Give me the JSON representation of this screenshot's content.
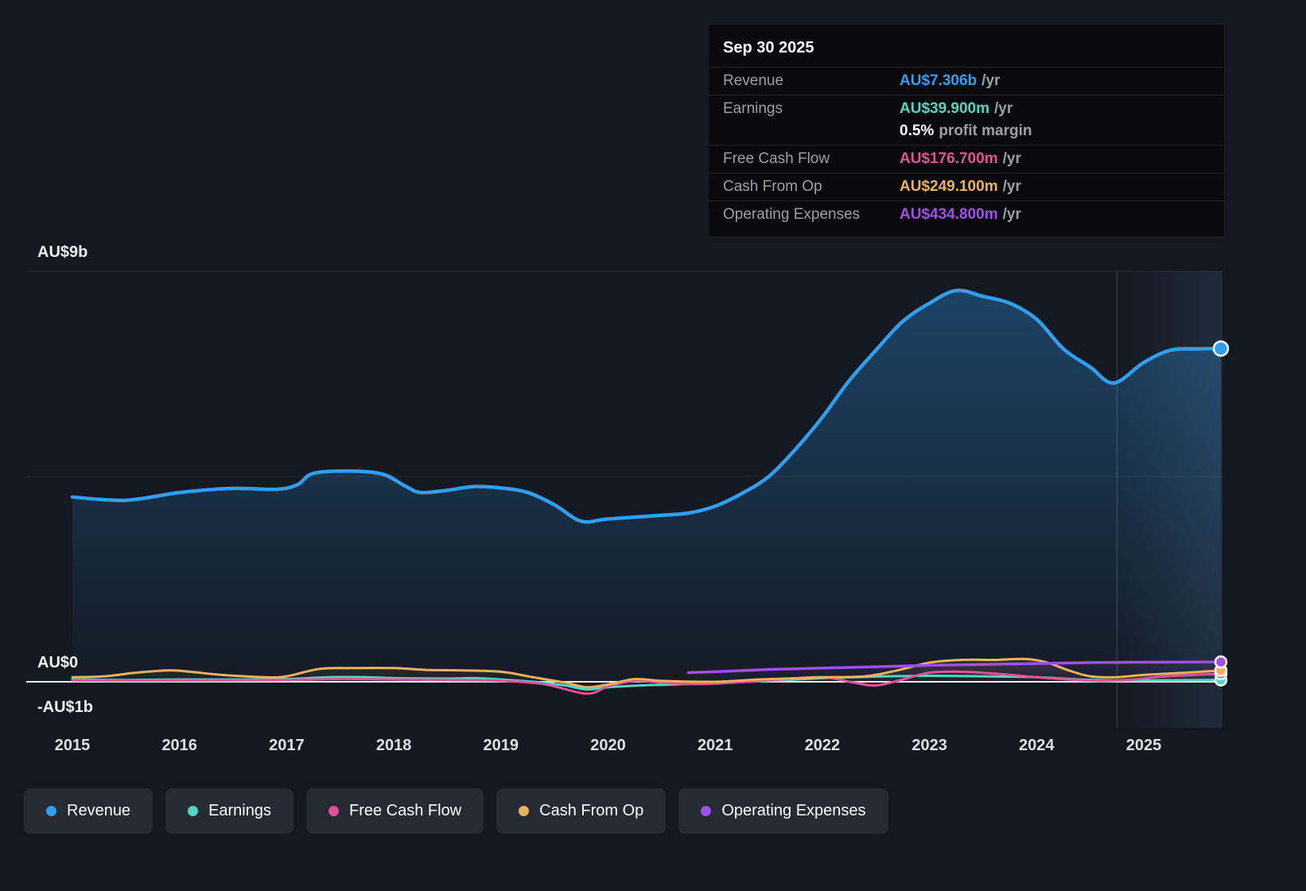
{
  "tooltip": {
    "date": "Sep 30 2025",
    "rows": [
      {
        "label": "Revenue",
        "value": "AU$7.306b",
        "suffix": "/yr",
        "color": "#2f9ff2"
      },
      {
        "label": "Earnings",
        "value": "AU$39.900m",
        "suffix": "/yr",
        "color": "#4ed8c3"
      },
      {
        "label": "Free Cash Flow",
        "value": "AU$176.700m",
        "suffix": "/yr",
        "color": "#e2519a"
      },
      {
        "label": "Cash From Op",
        "value": "AU$249.100m",
        "suffix": "/yr",
        "color": "#e9b35c"
      },
      {
        "label": "Operating Expenses",
        "value": "AU$434.800m",
        "suffix": "/yr",
        "color": "#a04ef0"
      }
    ],
    "profit_margin": {
      "value": "0.5%",
      "label": "profit margin"
    }
  },
  "axis": {
    "y_labels": [
      "AU$9b",
      "AU$0",
      "-AU$1b"
    ],
    "x_labels": [
      "2015",
      "2016",
      "2017",
      "2018",
      "2019",
      "2020",
      "2021",
      "2022",
      "2023",
      "2024",
      "2025"
    ]
  },
  "legend": {
    "items": [
      {
        "label": "Revenue",
        "color": "#2f9ff2"
      },
      {
        "label": "Earnings",
        "color": "#4ed8c3"
      },
      {
        "label": "Free Cash Flow",
        "color": "#e2519a"
      },
      {
        "label": "Cash From Op",
        "color": "#e9b35c"
      },
      {
        "label": "Operating Expenses",
        "color": "#a04ef0"
      }
    ]
  },
  "chart_data": {
    "type": "area",
    "title": "",
    "unit": "AU$ billions",
    "x_ticks": [
      2015,
      2016,
      2017,
      2018,
      2019,
      2020,
      2021,
      2022,
      2023,
      2024,
      2025
    ],
    "x_range": [
      2015,
      2025.73
    ],
    "ylim": [
      -1,
      9
    ],
    "y_gridlines_b": [
      9,
      4.5
    ],
    "zero_line": true,
    "highlight_from_year": 2024.75,
    "legend_position": "bottom",
    "series": [
      {
        "name": "Revenue",
        "color": "#2f9ff2",
        "line_width": 4.5,
        "area_opacity": 0.32,
        "end_marker": 9,
        "points": [
          [
            2015,
            4.05
          ],
          [
            2015.5,
            3.98
          ],
          [
            2016,
            4.15
          ],
          [
            2016.5,
            4.24
          ],
          [
            2016.9,
            4.22
          ],
          [
            2017.1,
            4.32
          ],
          [
            2017.25,
            4.57
          ],
          [
            2017.6,
            4.62
          ],
          [
            2017.9,
            4.55
          ],
          [
            2018.1,
            4.3
          ],
          [
            2018.25,
            4.15
          ],
          [
            2018.5,
            4.2
          ],
          [
            2018.75,
            4.28
          ],
          [
            2019,
            4.25
          ],
          [
            2019.25,
            4.15
          ],
          [
            2019.5,
            3.88
          ],
          [
            2019.75,
            3.52
          ],
          [
            2020,
            3.57
          ],
          [
            2020.5,
            3.65
          ],
          [
            2020.75,
            3.7
          ],
          [
            2021,
            3.85
          ],
          [
            2021.25,
            4.13
          ],
          [
            2021.5,
            4.5
          ],
          [
            2021.75,
            5.1
          ],
          [
            2022,
            5.8
          ],
          [
            2022.25,
            6.6
          ],
          [
            2022.5,
            7.27
          ],
          [
            2022.75,
            7.9
          ],
          [
            2023,
            8.3
          ],
          [
            2023.25,
            8.58
          ],
          [
            2023.5,
            8.45
          ],
          [
            2023.75,
            8.3
          ],
          [
            2024,
            7.95
          ],
          [
            2024.25,
            7.3
          ],
          [
            2024.5,
            6.9
          ],
          [
            2024.72,
            6.55
          ],
          [
            2025,
            7.0
          ],
          [
            2025.25,
            7.27
          ],
          [
            2025.5,
            7.3
          ],
          [
            2025.72,
            7.306
          ]
        ]
      },
      {
        "name": "Earnings",
        "color": "#4ed8c3",
        "line_width": 3,
        "area_opacity": 0,
        "end_marker": 7,
        "points": [
          [
            2015,
            0.05
          ],
          [
            2015.5,
            0.04
          ],
          [
            2016,
            0.05
          ],
          [
            2016.5,
            0.05
          ],
          [
            2017,
            0.06
          ],
          [
            2017.4,
            0.1
          ],
          [
            2017.75,
            0.1
          ],
          [
            2018,
            0.08
          ],
          [
            2018.5,
            0.07
          ],
          [
            2018.75,
            0.08
          ],
          [
            2019,
            0.05
          ],
          [
            2019.3,
            0.0
          ],
          [
            2019.6,
            -0.08
          ],
          [
            2019.8,
            -0.17
          ],
          [
            2020,
            -0.12
          ],
          [
            2020.3,
            -0.08
          ],
          [
            2020.6,
            -0.06
          ],
          [
            2021,
            -0.02
          ],
          [
            2021.5,
            0.02
          ],
          [
            2022,
            0.08
          ],
          [
            2022.3,
            0.1
          ],
          [
            2022.6,
            0.12
          ],
          [
            2023,
            0.13
          ],
          [
            2023.5,
            0.12
          ],
          [
            2024,
            0.1
          ],
          [
            2024.4,
            0.05
          ],
          [
            2024.75,
            0.03
          ],
          [
            2025,
            0.03
          ],
          [
            2025.72,
            0.0399
          ]
        ]
      },
      {
        "name": "Free Cash Flow",
        "color": "#e2519a",
        "line_width": 3,
        "area_opacity": 0,
        "end_marker": 7,
        "points": [
          [
            2015,
            0.03
          ],
          [
            2016,
            0.03
          ],
          [
            2017,
            0.04
          ],
          [
            2017.5,
            0.06
          ],
          [
            2018,
            0.05
          ],
          [
            2018.5,
            0.04
          ],
          [
            2019,
            0.02
          ],
          [
            2019.4,
            -0.05
          ],
          [
            2019.8,
            -0.26
          ],
          [
            2020,
            -0.1
          ],
          [
            2020.25,
            0.02
          ],
          [
            2020.5,
            -0.02
          ],
          [
            2020.75,
            -0.05
          ],
          [
            2021,
            -0.04
          ],
          [
            2021.3,
            0.0
          ],
          [
            2021.6,
            0.05
          ],
          [
            2022,
            0.1
          ],
          [
            2022.3,
            -0.02
          ],
          [
            2022.5,
            -0.08
          ],
          [
            2022.75,
            0.05
          ],
          [
            2023,
            0.2
          ],
          [
            2023.3,
            0.22
          ],
          [
            2023.6,
            0.18
          ],
          [
            2024,
            0.1
          ],
          [
            2024.3,
            0.05
          ],
          [
            2024.6,
            0.02
          ],
          [
            2024.9,
            0.05
          ],
          [
            2025.2,
            0.12
          ],
          [
            2025.72,
            0.1767
          ]
        ]
      },
      {
        "name": "Cash From Op",
        "color": "#e9b35c",
        "line_width": 3,
        "area_opacity": 0.12,
        "end_marker": 7,
        "points": [
          [
            2015,
            0.1
          ],
          [
            2015.3,
            0.12
          ],
          [
            2015.6,
            0.2
          ],
          [
            2015.9,
            0.25
          ],
          [
            2016.1,
            0.22
          ],
          [
            2016.4,
            0.15
          ],
          [
            2016.8,
            0.1
          ],
          [
            2017,
            0.12
          ],
          [
            2017.3,
            0.28
          ],
          [
            2017.6,
            0.3
          ],
          [
            2018,
            0.3
          ],
          [
            2018.3,
            0.26
          ],
          [
            2018.6,
            0.25
          ],
          [
            2019,
            0.22
          ],
          [
            2019.3,
            0.1
          ],
          [
            2019.6,
            -0.02
          ],
          [
            2019.8,
            -0.12
          ],
          [
            2020,
            -0.06
          ],
          [
            2020.25,
            0.06
          ],
          [
            2020.5,
            0.02
          ],
          [
            2021,
            0.0
          ],
          [
            2021.4,
            0.05
          ],
          [
            2021.8,
            0.08
          ],
          [
            2022,
            0.1
          ],
          [
            2022.4,
            0.12
          ],
          [
            2022.7,
            0.25
          ],
          [
            2023,
            0.42
          ],
          [
            2023.3,
            0.48
          ],
          [
            2023.6,
            0.48
          ],
          [
            2023.9,
            0.5
          ],
          [
            2024.1,
            0.42
          ],
          [
            2024.3,
            0.25
          ],
          [
            2024.5,
            0.12
          ],
          [
            2024.75,
            0.1
          ],
          [
            2025,
            0.15
          ],
          [
            2025.4,
            0.2
          ],
          [
            2025.72,
            0.2491
          ]
        ]
      },
      {
        "name": "Operating Expenses",
        "color": "#a04ef0",
        "line_width": 3.5,
        "area_opacity": 0.12,
        "end_marker": 7,
        "points": [
          [
            2020.75,
            0.2
          ],
          [
            2021,
            0.22
          ],
          [
            2021.5,
            0.27
          ],
          [
            2022,
            0.3
          ],
          [
            2022.5,
            0.33
          ],
          [
            2023,
            0.36
          ],
          [
            2023.5,
            0.38
          ],
          [
            2024,
            0.4
          ],
          [
            2024.5,
            0.42
          ],
          [
            2025,
            0.43
          ],
          [
            2025.72,
            0.4348
          ]
        ]
      }
    ]
  }
}
